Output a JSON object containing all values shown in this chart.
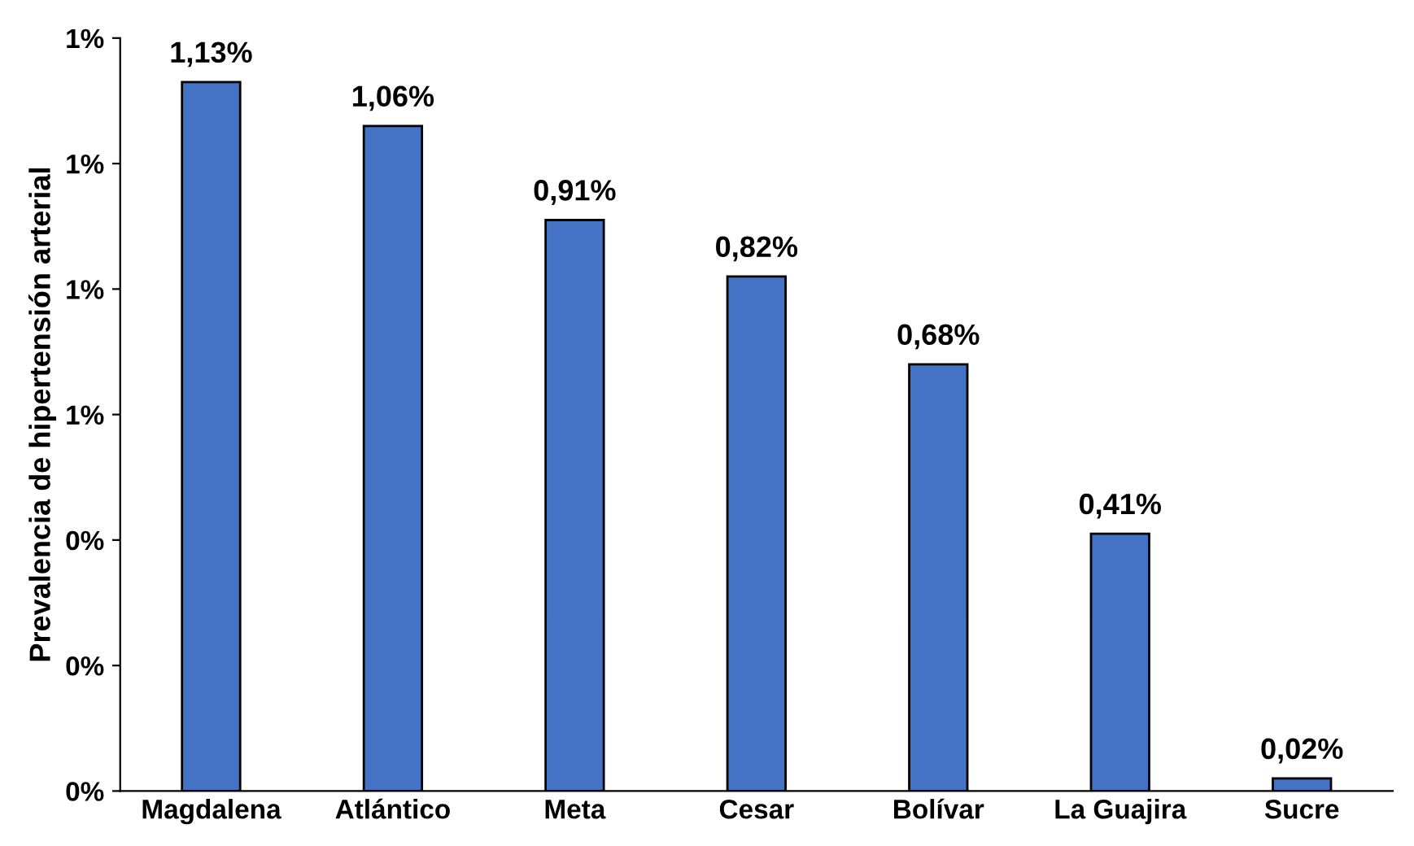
{
  "chart_data": {
    "type": "bar",
    "ylabel": "Prevalencia de hipertensión arterial",
    "categories": [
      "Magdalena",
      "Atlántico",
      "Meta",
      "Cesar",
      "Bolívar",
      "La Guajira",
      "Sucre"
    ],
    "values": [
      1.13,
      1.06,
      0.91,
      0.82,
      0.68,
      0.41,
      0.02
    ],
    "value_labels": [
      "1,13%",
      "1,06%",
      "0,91%",
      "0,82%",
      "0,68%",
      "0,41%",
      "0,02%"
    ],
    "color": "#4472c4",
    "ylim": [
      0,
      1.2
    ],
    "yticks": [
      {
        "value": 0,
        "label": "0%"
      },
      {
        "value": 0.2,
        "label": "0%"
      },
      {
        "value": 0.4,
        "label": "0%"
      },
      {
        "value": 0.6,
        "label": "1%"
      },
      {
        "value": 0.8,
        "label": "1%"
      },
      {
        "value": 1.0,
        "label": "1%"
      },
      {
        "value": 1.2,
        "label": "1%"
      }
    ],
    "grid": false,
    "legend": false
  }
}
